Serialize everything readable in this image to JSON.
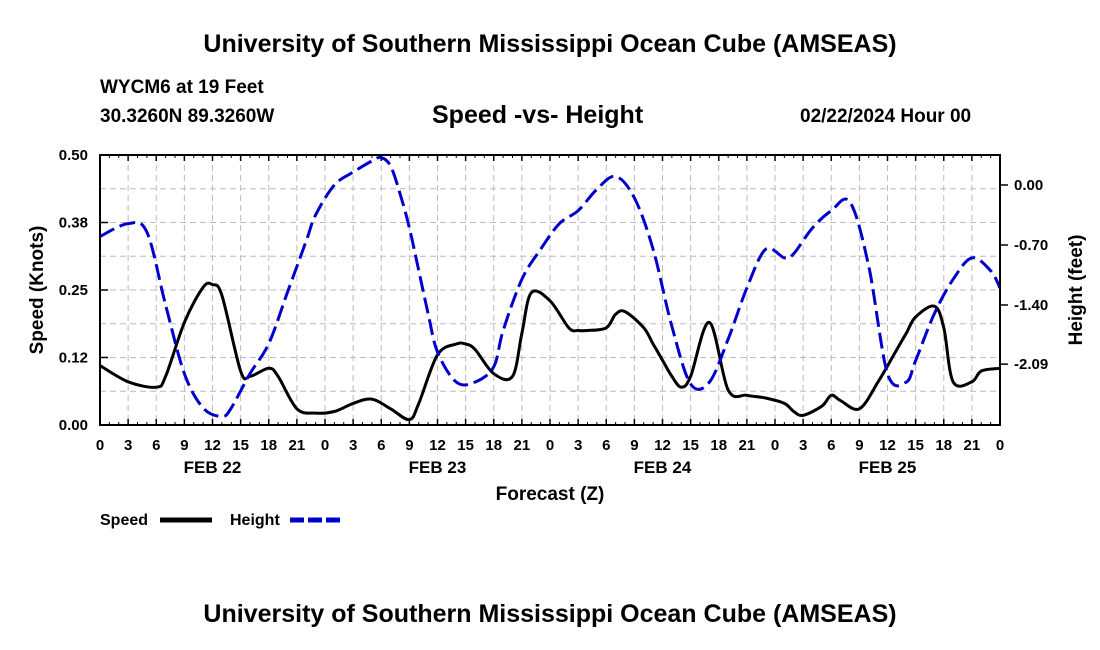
{
  "header": {
    "title": "University of Southern Mississippi Ocean Cube (AMSEAS)",
    "station": "WYCM6 at 19 Feet",
    "coords": "30.3260N  89.3260W",
    "subtitle": "Speed -vs- Height",
    "datetime": "02/22/2024 Hour 00"
  },
  "footer": {
    "title": "University of Southern Mississippi Ocean Cube (AMSEAS)"
  },
  "chart_data": {
    "type": "line",
    "title": "Speed -vs- Height",
    "xlabel": "Forecast (Z)",
    "ylabel": "Speed (Knots)",
    "y2label": "Height (feet)",
    "xlim": [
      0,
      96
    ],
    "ylim": [
      0,
      0.5
    ],
    "y2lim": [
      -2.8,
      0.35
    ],
    "grid": true,
    "x_tick_labels": [
      "0",
      "3",
      "6",
      "9",
      "12",
      "15",
      "18",
      "21",
      "0",
      "3",
      "6",
      "9",
      "12",
      "15",
      "18",
      "21",
      "0",
      "3",
      "6",
      "9",
      "12",
      "15",
      "18",
      "21",
      "0",
      "3",
      "6",
      "9",
      "12",
      "15",
      "18",
      "21",
      "0"
    ],
    "y_tick_labels": [
      "0.00",
      "0.12",
      "0.25",
      "0.38",
      "0.50"
    ],
    "y_tick_values": [
      0,
      0.125,
      0.25,
      0.375,
      0.5
    ],
    "y2_tick_labels": [
      "0.00",
      "-0.70",
      "-1.40",
      "-2.09"
    ],
    "y2_tick_values": [
      0,
      -0.7,
      -1.4,
      -2.09
    ],
    "day_labels": [
      {
        "x": 12,
        "label": "FEB 22"
      },
      {
        "x": 36,
        "label": "FEB 23"
      },
      {
        "x": 60,
        "label": "FEB 24"
      },
      {
        "x": 84,
        "label": "FEB 25"
      }
    ],
    "legend": {
      "position": "bottom-left"
    },
    "series": [
      {
        "name": "Speed",
        "axis": "left",
        "color": "#000000",
        "style": "solid",
        "x": [
          0,
          3,
          6,
          7,
          9,
          11,
          12,
          13,
          15,
          16,
          18,
          19,
          21,
          23,
          25,
          27,
          29,
          31,
          33,
          34,
          36,
          38,
          39,
          40,
          42,
          44,
          45,
          46,
          48,
          50,
          51,
          52,
          54,
          55,
          56,
          58,
          59,
          60,
          61,
          62,
          63,
          65,
          67,
          69,
          71,
          73,
          74,
          75,
          77,
          78,
          79,
          81,
          83,
          85,
          86,
          87,
          89,
          90,
          91,
          93,
          94,
          96
        ],
        "values": [
          0.11,
          0.08,
          0.07,
          0.09,
          0.19,
          0.255,
          0.26,
          0.24,
          0.1,
          0.09,
          0.105,
          0.09,
          0.03,
          0.022,
          0.025,
          0.04,
          0.048,
          0.03,
          0.01,
          0.04,
          0.13,
          0.15,
          0.15,
          0.14,
          0.095,
          0.09,
          0.17,
          0.245,
          0.23,
          0.18,
          0.175,
          0.175,
          0.18,
          0.205,
          0.21,
          0.18,
          0.15,
          0.12,
          0.09,
          0.07,
          0.09,
          0.19,
          0.065,
          0.055,
          0.05,
          0.04,
          0.025,
          0.018,
          0.035,
          0.055,
          0.045,
          0.03,
          0.08,
          0.14,
          0.17,
          0.2,
          0.22,
          0.18,
          0.08,
          0.08,
          0.1,
          0.105
        ]
      },
      {
        "name": "Height",
        "axis": "right",
        "color": "#0000cc",
        "style": "dashed",
        "x": [
          0,
          3,
          5,
          7,
          9,
          11,
          13,
          14,
          16,
          18,
          20,
          22,
          23,
          25,
          27,
          29,
          30,
          31,
          32,
          33,
          34,
          35,
          36,
          38,
          40,
          42,
          43,
          45,
          47,
          49,
          51,
          53,
          55,
          57,
          59,
          61,
          63,
          65,
          67,
          69,
          71,
          73,
          74,
          76,
          78,
          80,
          82,
          84,
          86,
          87,
          89,
          91,
          93,
          95,
          96
        ],
        "values": [
          -0.6,
          -0.45,
          -0.55,
          -1.4,
          -2.2,
          -2.6,
          -2.7,
          -2.6,
          -2.2,
          -1.85,
          -1.25,
          -0.65,
          -0.35,
          0,
          0.15,
          0.28,
          0.32,
          0.22,
          -0.1,
          -0.5,
          -1.0,
          -1.5,
          -1.95,
          -2.3,
          -2.3,
          -2.12,
          -1.7,
          -1.1,
          -0.75,
          -0.45,
          -0.3,
          -0.05,
          0.1,
          -0.15,
          -0.75,
          -1.65,
          -2.32,
          -2.3,
          -1.8,
          -1.2,
          -0.75,
          -0.85,
          -0.8,
          -0.5,
          -0.3,
          -0.2,
          -0.95,
          -2.2,
          -2.3,
          -2.05,
          -1.5,
          -1.1,
          -0.85,
          -1.0,
          -1.2
        ]
      }
    ]
  }
}
